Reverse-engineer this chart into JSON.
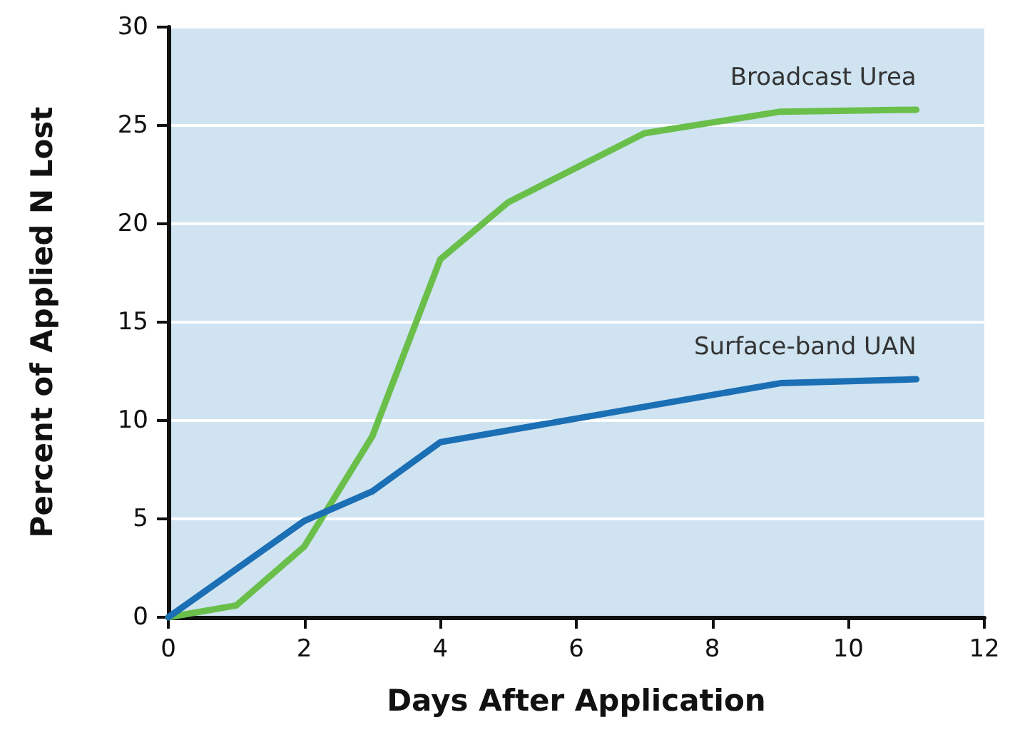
{
  "chart_data": {
    "type": "line",
    "xlabel": "Days After Application",
    "ylabel": "Percent of Applied N Lost",
    "xlim": [
      0,
      12
    ],
    "xticks": [
      0,
      2,
      4,
      6,
      8,
      10,
      12
    ],
    "ylim": [
      0,
      30
    ],
    "yticks": [
      0,
      5,
      10,
      15,
      20,
      25,
      30
    ],
    "grid": "y",
    "legend": false,
    "marker": "none",
    "line_style": "solid",
    "series": [
      {
        "name": "Broadcast Urea",
        "color": "#6abf4b",
        "x": [
          0,
          1,
          2,
          3,
          4,
          5,
          7,
          9,
          11
        ],
        "values": [
          0,
          0.6,
          3.6,
          9.2,
          18.2,
          21.1,
          24.6,
          25.7,
          25.8
        ]
      },
      {
        "name": "Surface-band UAN",
        "color": "#1b6fb4",
        "x": [
          0,
          2,
          3,
          4,
          9,
          11
        ],
        "values": [
          0,
          4.9,
          6.4,
          8.9,
          11.9,
          12.1
        ]
      }
    ]
  }
}
